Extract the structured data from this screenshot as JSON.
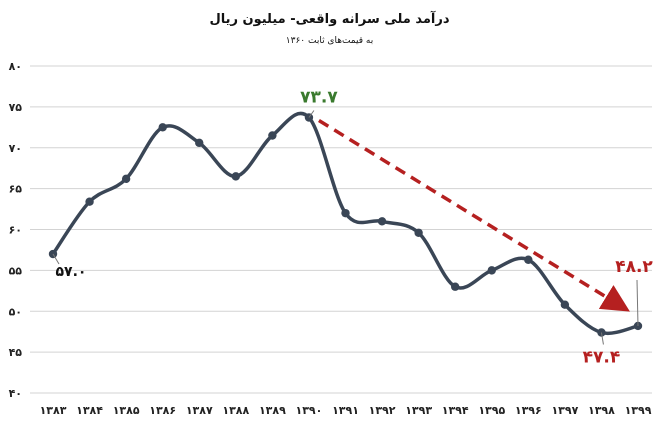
{
  "chart_data": {
    "type": "line",
    "title": "درآمد ملی سرانه واقعی- میلیون ریال",
    "subtitle": "به قیمت‌های ثابت ۱۳۶۰",
    "categories": [
      "۱۳۸۳",
      "۱۳۸۴",
      "۱۳۸۵",
      "۱۳۸۶",
      "۱۳۸۷",
      "۱۳۸۸",
      "۱۳۸۹",
      "۱۳۹۰",
      "۱۳۹۱",
      "۱۳۹۲",
      "۱۳۹۳",
      "۱۳۹۴",
      "۱۳۹۵",
      "۱۳۹۶",
      "۱۳۹۷",
      "۱۳۹۸",
      "۱۳۹۹"
    ],
    "values": [
      57.0,
      63.4,
      66.2,
      72.5,
      70.6,
      66.5,
      71.5,
      73.7,
      62.0,
      61.0,
      59.6,
      53.0,
      55.0,
      56.3,
      50.8,
      47.4,
      48.2
    ],
    "ylim": [
      40,
      80
    ],
    "yticks": [
      "۴۰",
      "۴۵",
      "۵۰",
      "۵۵",
      "۶۰",
      "۶۵",
      "۷۰",
      "۷۵",
      "۸۰"
    ],
    "ytick_values": [
      40,
      45,
      50,
      55,
      60,
      65,
      70,
      75,
      80
    ],
    "grid": true,
    "line_color": "#3a4656",
    "trend_color": "#b52020",
    "trend_from_index": 7,
    "trend_to_index": 16,
    "annotations": [
      {
        "index": 0,
        "text": "۵۷.۰",
        "color": "#111111"
      },
      {
        "index": 7,
        "text": "۷۳.۷",
        "color": "#3a7a2e"
      },
      {
        "index": 15,
        "text": "۴۷.۴",
        "color": "#b52020"
      },
      {
        "index": 16,
        "text": "۴۸.۲",
        "color": "#b52020"
      }
    ]
  }
}
